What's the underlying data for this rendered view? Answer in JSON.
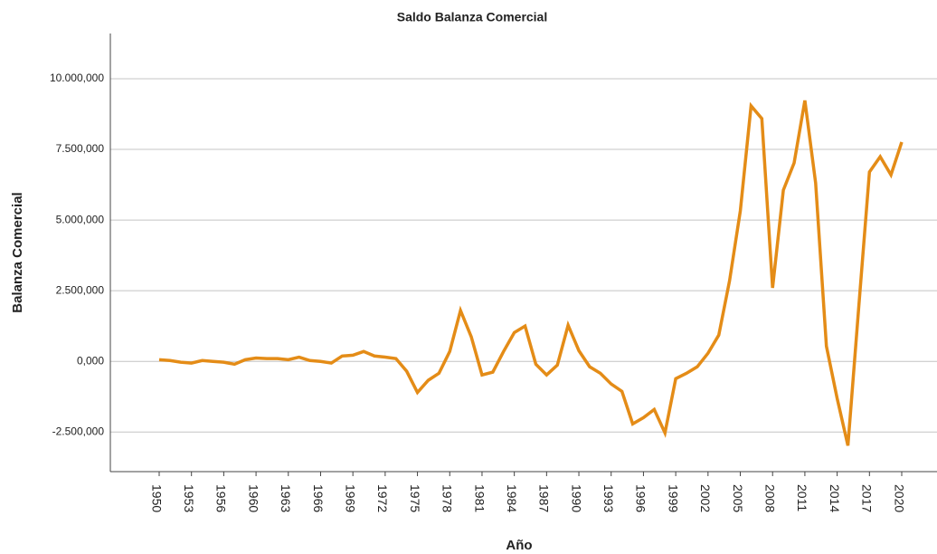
{
  "chart_data": {
    "type": "line",
    "title": "Saldo Balanza Comercial",
    "x_label": "Año",
    "y_label": "Balanza Comercial",
    "categories": [
      "1950",
      null,
      null,
      "1953",
      null,
      null,
      "1956",
      null,
      null,
      "1960",
      null,
      null,
      "1963",
      null,
      null,
      "1966",
      null,
      null,
      "1969",
      null,
      null,
      "1972",
      null,
      null,
      "1975",
      null,
      null,
      "1978",
      null,
      null,
      "1981",
      null,
      null,
      "1984",
      null,
      null,
      "1987",
      null,
      null,
      "1990",
      null,
      null,
      "1993",
      null,
      null,
      "1996",
      null,
      null,
      "1999",
      null,
      null,
      "2002",
      null,
      null,
      "2005",
      null,
      null,
      "2008",
      null,
      null,
      "2011",
      null,
      null,
      "2014",
      null,
      null,
      "2017",
      null,
      null,
      "2020"
    ],
    "series": [
      {
        "name": "Balanza Comercial",
        "color": "#e48c17",
        "values": [
          60000,
          30000,
          -30000,
          -60000,
          30000,
          0,
          -30000,
          -100000,
          60000,
          120000,
          100000,
          100000,
          60000,
          150000,
          30000,
          0,
          -60000,
          190000,
          220000,
          350000,
          190000,
          150000,
          100000,
          -350000,
          -1100000,
          -670000,
          -420000,
          350000,
          1800000,
          870000,
          -480000,
          -380000,
          350000,
          1020000,
          1250000,
          -100000,
          -480000,
          -130000,
          1280000,
          380000,
          -190000,
          -420000,
          -800000,
          -1060000,
          -2210000,
          -1990000,
          -1700000,
          -2530000,
          -610000,
          -420000,
          -190000,
          290000,
          930000,
          2850000,
          5320000,
          9040000,
          8590000,
          2600000,
          6060000,
          7020000,
          9230000,
          6310000,
          540000,
          -1310000,
          -2980000,
          1890000,
          6700000,
          7240000,
          6600000,
          7760000
        ]
      }
    ],
    "ylim": [
      -3900000,
      11600000
    ],
    "yticks": [
      {
        "value": -2500000,
        "label": "-2.500,000"
      },
      {
        "value": 0,
        "label": "0,000"
      },
      {
        "value": 2500000,
        "label": "2.500,000"
      },
      {
        "value": 5000000,
        "label": "5.000,000"
      },
      {
        "value": 7500000,
        "label": "7.500,000"
      },
      {
        "value": 10000000,
        "label": "10.000,000"
      }
    ],
    "grid": true
  }
}
